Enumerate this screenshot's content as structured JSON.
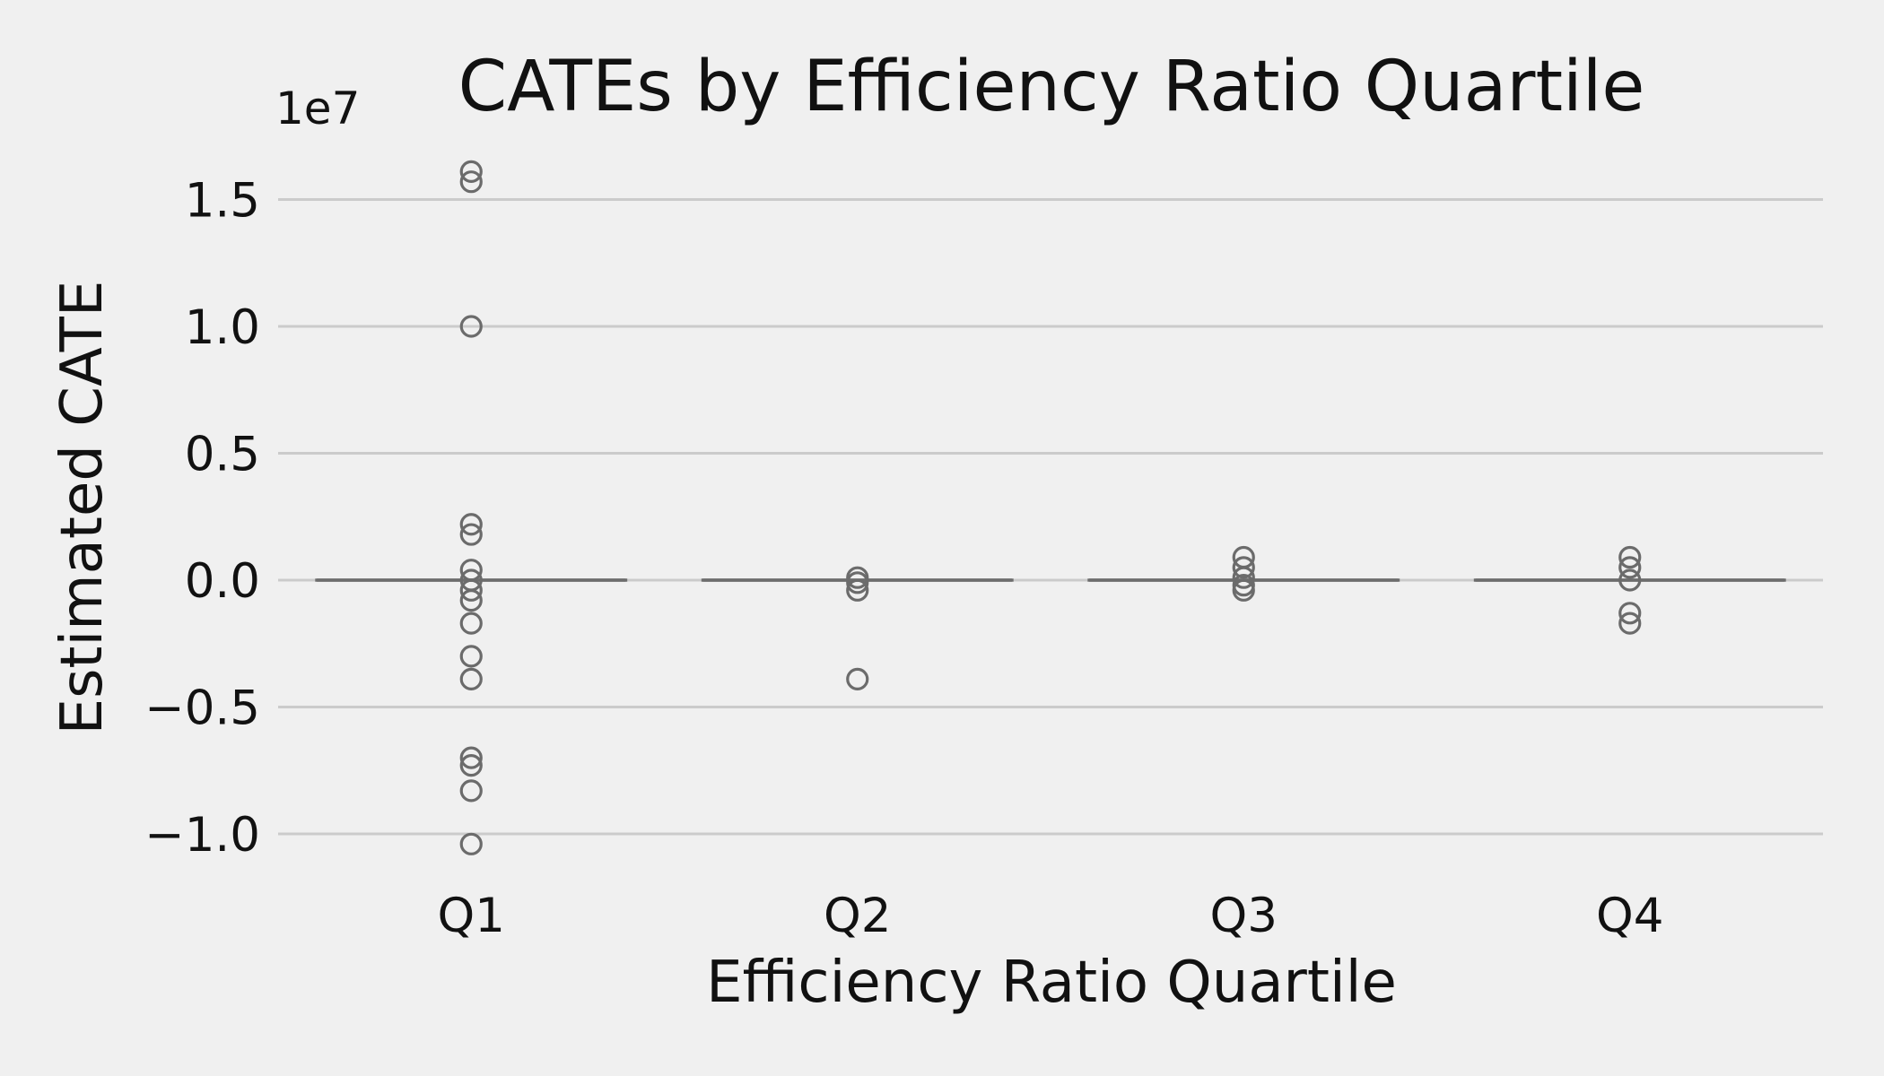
{
  "chart_data": {
    "type": "box",
    "title": "CATEs by Efficiency Ratio Quartile",
    "xlabel": "Efficiency Ratio Quartile",
    "ylabel": "Estimated CATE",
    "y_scale_label": "1e7",
    "y_multiplier": 10000000,
    "ylim": [
      -1.1,
      1.7
    ],
    "y_ticks": [
      -1.0,
      -0.5,
      0.0,
      0.5,
      1.0,
      1.5
    ],
    "y_tick_labels": [
      "−1.0",
      "−0.5",
      "0.0",
      "0.5",
      "1.0",
      "1.5"
    ],
    "grid": true,
    "categories": [
      "Q1",
      "Q2",
      "Q3",
      "Q4"
    ],
    "colors": {
      "background": "#f0f0f0",
      "grid": "#cbcbcb",
      "box": "#6d6d6d",
      "flier": "#6b6b6b",
      "text": "#111111"
    },
    "boxes": [
      {
        "category": "Q1",
        "median": 0.0,
        "q1": 0.0,
        "q3": 0.0,
        "whisker_low": 0.0,
        "whisker_high": 0.0,
        "outliers": [
          1.61,
          1.57,
          1.0,
          0.22,
          0.18,
          0.04,
          0.0,
          -0.04,
          -0.08,
          -0.17,
          -0.3,
          -0.39,
          -0.7,
          -0.73,
          -0.83,
          -1.04
        ]
      },
      {
        "category": "Q2",
        "median": 0.0,
        "q1": 0.0,
        "q3": 0.0,
        "whisker_low": 0.0,
        "whisker_high": 0.0,
        "outliers": [
          0.01,
          -0.01,
          -0.04,
          -0.39
        ]
      },
      {
        "category": "Q3",
        "median": 0.0,
        "q1": 0.0,
        "q3": 0.0,
        "whisker_low": 0.0,
        "whisker_high": 0.0,
        "outliers": [
          0.09,
          0.05,
          0.01,
          -0.02,
          -0.04
        ]
      },
      {
        "category": "Q4",
        "median": 0.0,
        "q1": 0.0,
        "q3": 0.0,
        "whisker_low": 0.0,
        "whisker_high": 0.0,
        "outliers": [
          0.09,
          0.05,
          0.0,
          -0.13,
          -0.17
        ]
      }
    ]
  }
}
